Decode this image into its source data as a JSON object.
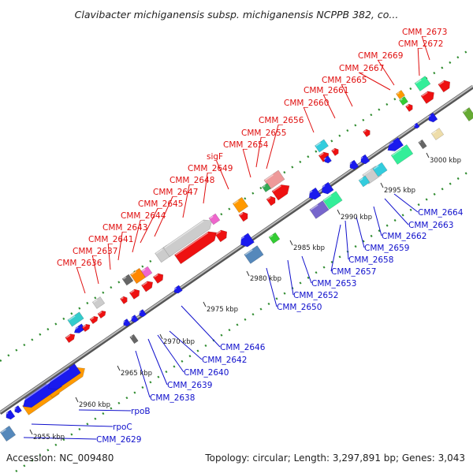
{
  "title": "Clavibacter michiganensis subsp. michiganensis NCPPB 382, co...",
  "accession": "Accession: NC_009480",
  "topology": "Topology: circular; Length: 3,297,891 bp; Genes: 3,043",
  "colors": {
    "forward_label": "#e01010",
    "reverse_label": "#1010cc",
    "backbone": "#8f8f8f",
    "dots": "#2e8b2e"
  },
  "ticks": [
    {
      "id": "2955",
      "label": "2955 kbp"
    },
    {
      "id": "2960",
      "label": "2960 kbp"
    },
    {
      "id": "2965",
      "label": "2965 kbp"
    },
    {
      "id": "2970",
      "label": "2970 kbp"
    },
    {
      "id": "2975",
      "label": "2975 kbp"
    },
    {
      "id": "2980",
      "label": "2980 kbp"
    },
    {
      "id": "2985",
      "label": "2985 kbp"
    },
    {
      "id": "2990",
      "label": "2990 kbp"
    },
    {
      "id": "2995",
      "label": "2995 kbp"
    },
    {
      "id": "3000",
      "label": "3000 kbp"
    }
  ],
  "forward_labels": [
    "CMM_2673",
    "CMM_2672",
    "CMM_2669",
    "CMM_2667",
    "CMM_2665",
    "CMM_2661",
    "CMM_2660",
    "CMM_2656",
    "CMM_2655",
    "CMM_2654",
    "sigF",
    "CMM_2649",
    "CMM_2648",
    "CMM_2647",
    "CMM_2645",
    "CMM_2644",
    "CMM_2643",
    "CMM_2641",
    "CMM_2637",
    "CMM_2636"
  ],
  "reverse_labels": [
    "CMM_2664",
    "CMM_2663",
    "CMM_2662",
    "CMM_2659",
    "CMM_2658",
    "CMM_2657",
    "CMM_2653",
    "CMM_2652",
    "CMM_2650",
    "CMM_2646",
    "CMM_2642",
    "CMM_2640",
    "CMM_2639",
    "CMM_2638",
    "rpoB",
    "rpoC",
    "CMM_2629"
  ]
}
